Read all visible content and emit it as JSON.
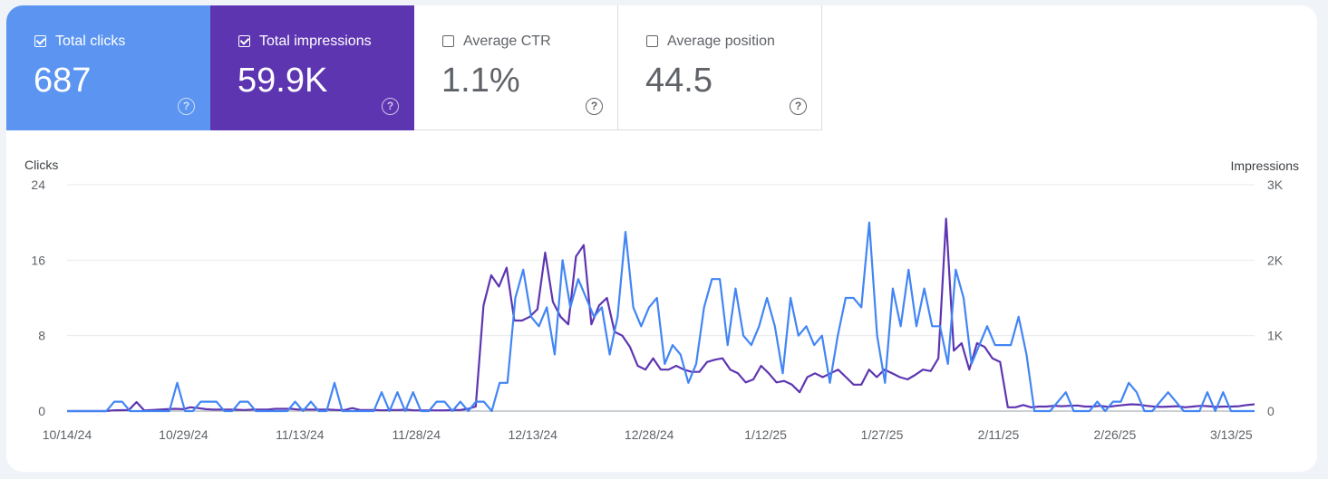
{
  "metrics": [
    {
      "label": "Total clicks",
      "value": "687",
      "checked": true,
      "bg": "#5b95f1"
    },
    {
      "label": "Total impressions",
      "value": "59.9K",
      "checked": true,
      "bg": "#5e35b1"
    },
    {
      "label": "Average CTR",
      "value": "1.1%",
      "checked": false,
      "bg": "#ffffff"
    },
    {
      "label": "Average position",
      "value": "44.5",
      "checked": false,
      "bg": "#ffffff"
    }
  ],
  "help_glyph": "?",
  "colors": {
    "clicks": "#4285f4",
    "impressions": "#5e35b1",
    "grid": "#e8eaed",
    "text": "#5f6368"
  },
  "chart_data": {
    "type": "line",
    "ylabel_left": "Clicks",
    "ylabel_right": "Impressions",
    "left_ticks": [
      "0",
      "8",
      "16",
      "24"
    ],
    "right_ticks": [
      "0",
      "1K",
      "2K",
      "3K"
    ],
    "ylim_left": [
      0,
      24
    ],
    "ylim_right": [
      0,
      3000
    ],
    "x_tick_labels": [
      "10/14/24",
      "10/29/24",
      "11/13/24",
      "11/28/24",
      "12/13/24",
      "12/28/24",
      "1/12/25",
      "1/27/25",
      "2/11/25",
      "2/26/25",
      "3/13/25"
    ],
    "x_start": "10/14/24",
    "x_end": "3/16/25",
    "grid": true,
    "series": [
      {
        "name": "Clicks",
        "axis": "left",
        "values": [
          0,
          0,
          0,
          0,
          0,
          0,
          1,
          1,
          0,
          0,
          0,
          0,
          0,
          0,
          3,
          0,
          0,
          1,
          1,
          1,
          0,
          0,
          1,
          1,
          0,
          0,
          0,
          0,
          0,
          1,
          0,
          1,
          0,
          0,
          3,
          0,
          0,
          0,
          0,
          0,
          2,
          0,
          2,
          0,
          2,
          0,
          0,
          1,
          1,
          0,
          1,
          0,
          1,
          1,
          0,
          3,
          3,
          12,
          15,
          10,
          9,
          11,
          6,
          16,
          11,
          14,
          12,
          10,
          11,
          6,
          10,
          19,
          11,
          9,
          11,
          12,
          5,
          7,
          6,
          3,
          5,
          11,
          14,
          14,
          7,
          13,
          8,
          7,
          9,
          12,
          9,
          4,
          12,
          8,
          9,
          7,
          8,
          3,
          8,
          12,
          12,
          11,
          20,
          8,
          3,
          13,
          9,
          15,
          9,
          13,
          9,
          9,
          5,
          15,
          12,
          5,
          7,
          9,
          7,
          7,
          7,
          10,
          6,
          0,
          0,
          0,
          1,
          2,
          0,
          0,
          0,
          1,
          0,
          1,
          1,
          3,
          2,
          0,
          0,
          1,
          2,
          1,
          0,
          0,
          0,
          2,
          0,
          2,
          0,
          0,
          0,
          0
        ]
      },
      {
        "name": "Impressions",
        "axis": "right",
        "values": [
          0,
          0,
          0,
          0,
          0,
          0,
          10,
          12,
          15,
          120,
          10,
          15,
          20,
          25,
          30,
          25,
          50,
          40,
          25,
          20,
          20,
          20,
          18,
          15,
          20,
          20,
          20,
          30,
          30,
          30,
          20,
          20,
          20,
          20,
          20,
          15,
          15,
          40,
          15,
          15,
          15,
          10,
          15,
          15,
          20,
          10,
          10,
          10,
          10,
          10,
          15,
          15,
          30,
          60,
          1400,
          1800,
          1650,
          1900,
          1200,
          1200,
          1250,
          1350,
          2100,
          1450,
          1250,
          1150,
          2050,
          2200,
          1150,
          1400,
          1500,
          1050,
          1000,
          850,
          600,
          550,
          700,
          550,
          550,
          600,
          550,
          520,
          520,
          650,
          680,
          700,
          550,
          500,
          380,
          420,
          600,
          500,
          380,
          400,
          350,
          250,
          450,
          500,
          450,
          500,
          550,
          450,
          350,
          350,
          550,
          450,
          550,
          500,
          450,
          420,
          480,
          550,
          530,
          700,
          2550,
          800,
          900,
          550,
          900,
          850,
          700,
          650,
          50,
          50,
          80,
          50,
          60,
          60,
          70,
          65,
          70,
          75,
          60,
          60,
          70,
          55,
          70,
          80,
          90,
          85,
          70,
          60,
          55,
          60,
          65,
          50,
          60,
          70,
          65,
          55,
          60,
          60,
          65,
          80,
          90
        ]
      }
    ]
  }
}
